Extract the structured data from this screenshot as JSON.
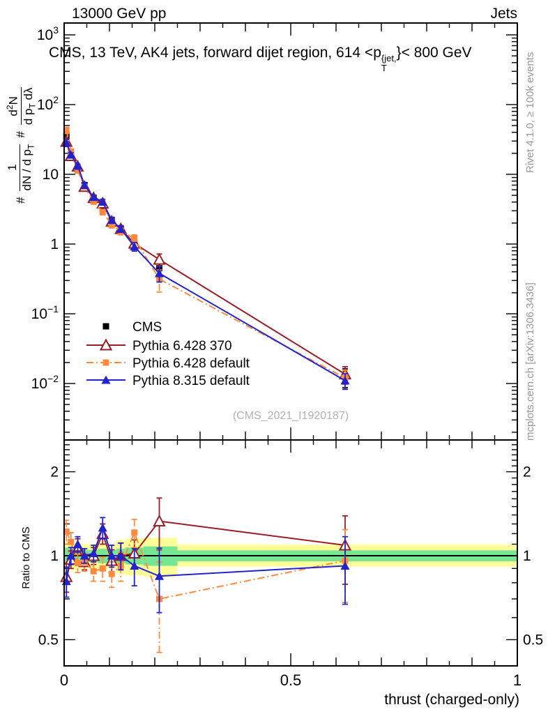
{
  "titles": {
    "top_left": "13000 GeV pp",
    "top_right": "Jets",
    "watermark": "(CMS_2021_I1920187)",
    "side_top": "Rivet 4.1.0, ≥ 100k events",
    "side_bottom": "mcplots.cern.ch [arXiv:1306.3436]"
  },
  "inner_title": {
    "prefix": "CMS, 13 TeV, AK4 jets, forward dijet region, 614 <p",
    "sup": "{jet,",
    "sub": "T",
    "suffix": "}< 800 GeV"
  },
  "ylabel": {
    "hash1": "#",
    "num1": "1",
    "den1_main": "dN / d p",
    "den1_sub": "T",
    "hash2": "#",
    "num2_pre": "d",
    "num2_sup": "2",
    "num2_post": "N",
    "den2_main": "d p",
    "den2_sub": "T",
    "den2_post": " dλ"
  },
  "legend": {
    "cms": "CMS"
  },
  "colors": {
    "cms": "#000000",
    "p6_370": "#9a1e28",
    "p6_def": "#ff8a3d",
    "p8_def": "#2323cc",
    "band_yellow": "#ffff99",
    "band_green": "#77e692",
    "gray_text": "#999999",
    "watermark": "#b2b2b2"
  },
  "chart_data": {
    "type": "line",
    "xlabel": "thrust (charged-only)",
    "xlim": [
      0,
      1
    ],
    "xticks": [
      {
        "v": 0,
        "label": "0"
      },
      {
        "v": 0.5,
        "label": "0.5"
      },
      {
        "v": 1,
        "label": "1"
      }
    ],
    "top_panel": {
      "ylog": true,
      "ylim": [
        0.0016,
        1480
      ],
      "yticks": [
        {
          "v": 1000,
          "label": "10^3"
        },
        {
          "v": 100,
          "label": "10^2"
        },
        {
          "v": 10,
          "label": "10"
        },
        {
          "v": 1,
          "label": "1"
        },
        {
          "v": 0.1,
          "label": "10^−1"
        },
        {
          "v": 0.01,
          "label": "10^−2"
        }
      ],
      "x": [
        0.005,
        0.015,
        0.03,
        0.045,
        0.065,
        0.085,
        0.105,
        0.125,
        0.155,
        0.21,
        0.62
      ],
      "cms": {
        "label": "CMS",
        "values": [
          35,
          19,
          12,
          7,
          4.6,
          3.2,
          2.2,
          1.65,
          1.0,
          0.45,
          0.0125
        ],
        "rel_err": [
          0.2,
          0.12,
          0.1,
          0.09,
          0.09,
          0.09,
          0.1,
          0.11,
          0.13,
          0.28,
          0.3
        ]
      },
      "series": [
        {
          "name": "Pythia 6.428 370",
          "color_key": "p6_370",
          "line": "solid",
          "marker": "triangle-open",
          "values": [
            29.4,
            18.4,
            13.0,
            6.65,
            4.6,
            3.85,
            2.11,
            1.65,
            1.02,
            0.6,
            0.0136
          ],
          "rel_err": [
            0.12,
            0.07,
            0.06,
            0.06,
            0.07,
            0.08,
            0.09,
            0.11,
            0.12,
            0.2,
            0.28
          ]
        },
        {
          "name": "Pythia 6.428 default",
          "color_key": "p6_def",
          "line": "dashdot",
          "marker": "square-filled",
          "values": [
            42.7,
            21.3,
            11.3,
            6.65,
            4.05,
            2.88,
            1.89,
            1.52,
            1.21,
            0.315,
            0.012
          ],
          "rel_err": [
            0.1,
            0.08,
            0.07,
            0.07,
            0.07,
            0.09,
            0.1,
            0.11,
            0.12,
            0.35,
            0.3
          ]
        },
        {
          "name": "Pythia 8.315 default",
          "color_key": "p8_def",
          "line": "solid",
          "marker": "triangle-filled",
          "values": [
            28.4,
            19.0,
            13.2,
            7.0,
            4.7,
            4.03,
            2.2,
            1.65,
            0.92,
            0.38,
            0.011
          ],
          "rel_err": [
            0.12,
            0.07,
            0.06,
            0.06,
            0.07,
            0.09,
            0.09,
            0.11,
            0.14,
            0.25,
            0.25
          ]
        }
      ]
    },
    "ratio_panel": {
      "ylabel": "Ratio to CMS",
      "ylog": true,
      "ylim": [
        0.4,
        2.57
      ],
      "yticks": [
        {
          "v": 0.5,
          "label": "0.5"
        },
        {
          "v": 1,
          "label": "1"
        },
        {
          "v": 2,
          "label": "2"
        }
      ],
      "ratios": [
        {
          "name": "Pythia 6.428 370",
          "values": [
            0.84,
            0.97,
            1.08,
            0.95,
            1.0,
            1.2,
            0.96,
            1.0,
            1.02,
            1.33,
            1.09
          ],
          "err": [
            0.1,
            0.07,
            0.07,
            0.06,
            0.07,
            0.1,
            0.09,
            0.11,
            0.12,
            0.28,
            0.3
          ]
        },
        {
          "name": "Pythia 6.428 default",
          "values": [
            1.22,
            1.12,
            0.94,
            0.95,
            0.88,
            0.9,
            0.86,
            0.92,
            1.21,
            0.7,
            0.96
          ],
          "err": [
            0.12,
            0.09,
            0.07,
            0.07,
            0.07,
            0.09,
            0.09,
            0.11,
            0.14,
            0.25,
            0.28
          ]
        },
        {
          "name": "Pythia 8.315 default",
          "values": [
            0.81,
            1.0,
            1.1,
            1.0,
            1.02,
            1.26,
            1.0,
            1.0,
            0.92,
            0.845,
            0.92
          ],
          "err": [
            0.1,
            0.07,
            0.07,
            0.06,
            0.07,
            0.11,
            0.09,
            0.11,
            0.14,
            0.22,
            0.25
          ]
        }
      ],
      "bands": [
        {
          "x0": 0,
          "x1": 0.01,
          "green": [
            0.93,
            1.07
          ],
          "yellow": [
            0.87,
            1.13
          ]
        },
        {
          "x0": 0.01,
          "x1": 0.02,
          "green": [
            0.94,
            1.06
          ],
          "yellow": [
            0.88,
            1.12
          ]
        },
        {
          "x0": 0.02,
          "x1": 0.0375,
          "green": [
            0.94,
            1.06
          ],
          "yellow": [
            0.89,
            1.11
          ]
        },
        {
          "x0": 0.0375,
          "x1": 0.055,
          "green": [
            0.95,
            1.05
          ],
          "yellow": [
            0.9,
            1.1
          ]
        },
        {
          "x0": 0.055,
          "x1": 0.075,
          "green": [
            0.95,
            1.05
          ],
          "yellow": [
            0.9,
            1.1
          ]
        },
        {
          "x0": 0.075,
          "x1": 0.095,
          "green": [
            0.94,
            1.06
          ],
          "yellow": [
            0.89,
            1.11
          ]
        },
        {
          "x0": 0.095,
          "x1": 0.115,
          "green": [
            0.95,
            1.05
          ],
          "yellow": [
            0.9,
            1.1
          ]
        },
        {
          "x0": 0.115,
          "x1": 0.135,
          "green": [
            0.94,
            1.06
          ],
          "yellow": [
            0.86,
            1.14
          ]
        },
        {
          "x0": 0.135,
          "x1": 0.175,
          "green": [
            0.93,
            1.07
          ],
          "yellow": [
            0.85,
            1.15
          ]
        },
        {
          "x0": 0.175,
          "x1": 0.25,
          "green": [
            0.92,
            1.08
          ],
          "yellow": [
            0.84,
            1.16
          ]
        },
        {
          "x0": 0.25,
          "x1": 1.0,
          "green": [
            0.955,
            1.045
          ],
          "yellow": [
            0.915,
            1.095
          ]
        }
      ]
    }
  }
}
